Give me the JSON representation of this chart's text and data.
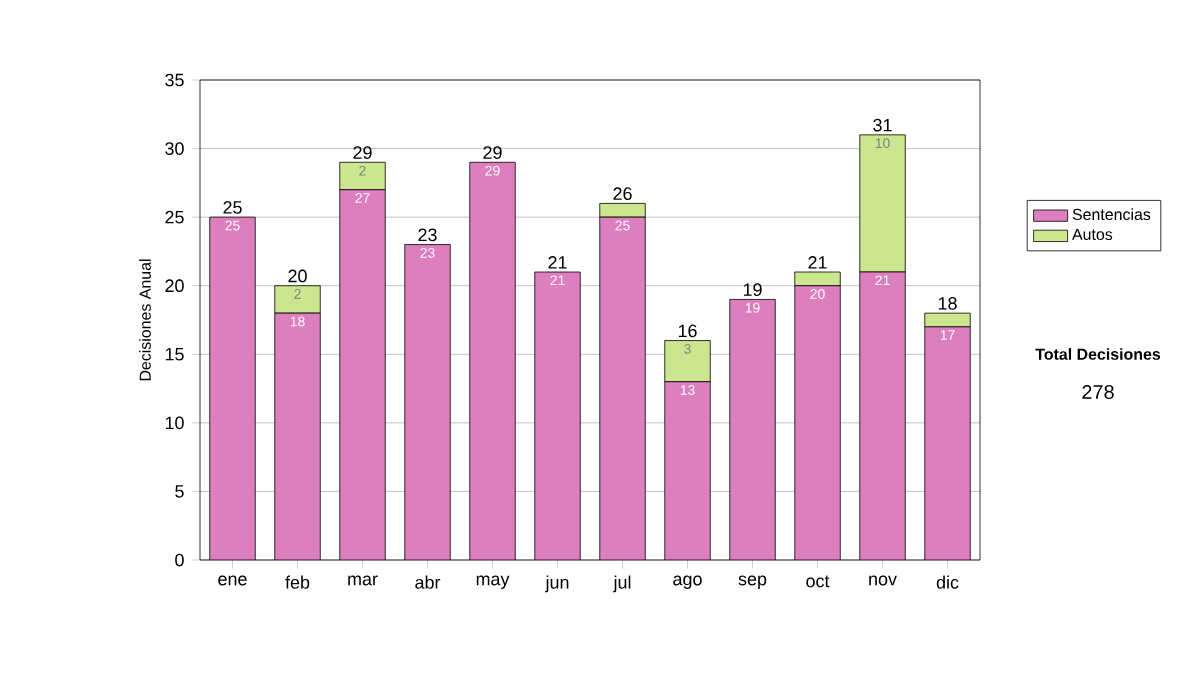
{
  "chart_data": {
    "type": "bar",
    "stacked": true,
    "ylabel": "Decisiones Anual",
    "categories": [
      "ene",
      "feb",
      "mar",
      "abr",
      "may",
      "jun",
      "jul",
      "ago",
      "sep",
      "oct",
      "nov",
      "dic"
    ],
    "series": [
      {
        "name": "Sentencias",
        "color": "#dd7fbf",
        "values": [
          25,
          18,
          27,
          23,
          29,
          21,
          25,
          13,
          19,
          20,
          21,
          17
        ],
        "value_labels": [
          "25",
          "18",
          "27",
          "23",
          "29",
          "21",
          "25",
          "13",
          "19",
          "20",
          "21",
          "17"
        ]
      },
      {
        "name": "Autos",
        "color": "#cce58f",
        "values": [
          0,
          2,
          2,
          0,
          0,
          0,
          1,
          3,
          0,
          1,
          10,
          1
        ],
        "value_labels": [
          null,
          "2",
          "2",
          null,
          null,
          null,
          null,
          "3",
          null,
          null,
          "10",
          null
        ]
      }
    ],
    "totals": [
      "25",
      "20",
      "29",
      "23",
      "29",
      "21",
      "26",
      "16",
      "19",
      "21",
      "31",
      "18"
    ],
    "ylim": [
      0,
      35
    ],
    "yticks": [
      0,
      5,
      10,
      15,
      20,
      25,
      30,
      35
    ],
    "grid": "y",
    "legend": "right",
    "annotations": [
      "Total Decisiones",
      "278"
    ]
  }
}
